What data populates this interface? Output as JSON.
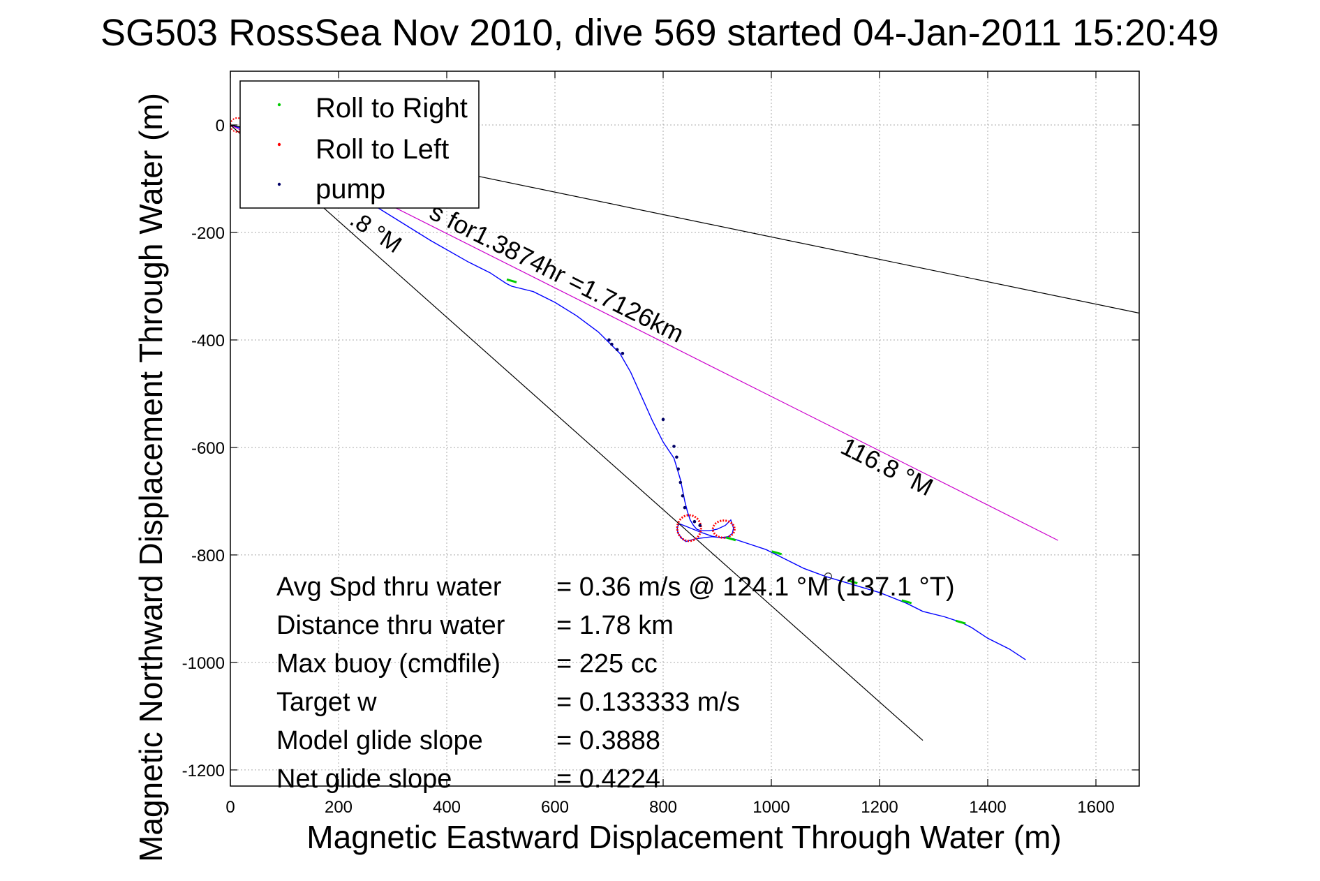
{
  "chart_data": {
    "type": "line",
    "title": "SG503 RossSea Nov 2010, dive 569 started 04-Jan-2011 15:20:49",
    "xlabel": "Magnetic Eastward Displacement Through Water (m)",
    "ylabel": "Magnetic Northward Displacement Through Water (m)",
    "xlim": [
      0,
      1680
    ],
    "ylim": [
      -1230,
      100
    ],
    "x_ticks": [
      0,
      200,
      400,
      600,
      800,
      1000,
      1200,
      1400,
      1600
    ],
    "y_ticks": [
      0,
      -200,
      -400,
      -600,
      -800,
      -1000,
      -1200
    ],
    "x_tick_labels": [
      "0",
      "200",
      "400",
      "600",
      "800",
      "1000",
      "1200",
      "1400",
      "1600"
    ],
    "y_tick_labels": [
      "0",
      "-200",
      "-400",
      "-600",
      "-800",
      "-1000",
      "-1200"
    ],
    "grid": true,
    "legend": {
      "position": "top-left",
      "entries": [
        {
          "label": "Roll to Right",
          "color": "#00cc00"
        },
        {
          "label": "Roll to Left",
          "color": "#ff0000"
        },
        {
          "label": "pump",
          "color": "#000066"
        }
      ]
    },
    "colors": {
      "track": "#0000ff",
      "avg_line": "#cc00cc",
      "ref_line": "#000000",
      "right": "#00cc00",
      "left": "#ff0000",
      "pump": "#000066",
      "marker": "#333333",
      "grid": "#aaaaaa"
    },
    "series": [
      {
        "name": "track",
        "x": [
          0,
          30,
          80,
          140,
          210,
          290,
          370,
          440,
          480,
          510,
          520,
          560,
          600,
          640,
          680,
          700,
          720,
          740,
          760,
          780,
          800,
          820,
          832,
          840,
          845,
          850,
          856,
          862,
          870,
          885,
          900,
          915,
          925,
          930,
          928,
          920,
          905,
          890,
          870,
          850,
          838,
          830,
          826,
          827,
          833,
          842,
          860,
          890,
          930,
          960,
          990,
          1010,
          1030,
          1060,
          1100,
          1150,
          1200,
          1250,
          1280,
          1320,
          1350,
          1370,
          1400,
          1440,
          1470
        ],
        "y": [
          0,
          -10,
          -35,
          -70,
          -115,
          -165,
          -215,
          -255,
          -275,
          -295,
          -300,
          -310,
          -330,
          -355,
          -385,
          -405,
          -425,
          -460,
          -505,
          -550,
          -590,
          -620,
          -660,
          -700,
          -720,
          -735,
          -745,
          -752,
          -755,
          -755,
          -752,
          -745,
          -735,
          -750,
          -760,
          -766,
          -768,
          -765,
          -758,
          -750,
          -745,
          -742,
          -748,
          -758,
          -768,
          -775,
          -770,
          -766,
          -770,
          -780,
          -790,
          -800,
          -810,
          -825,
          -840,
          -855,
          -870,
          -890,
          -905,
          -915,
          -925,
          -935,
          -955,
          -975,
          -995
        ]
      },
      {
        "name": "average-track",
        "x": [
          0,
          1530
        ],
        "y": [
          0,
          -773
        ]
      },
      {
        "name": "reference-line-1",
        "x": [
          0,
          1680
        ],
        "y": [
          0,
          -350
        ]
      },
      {
        "name": "reference-line-2",
        "x": [
          0,
          1280
        ],
        "y": [
          0,
          -1145
        ]
      }
    ],
    "roll_right_points": {
      "x": [
        520,
        925,
        1010,
        1150,
        1250,
        1350
      ],
      "y": [
        -290,
        -770,
        -796,
        -850,
        -887,
        -925
      ]
    },
    "roll_left_loops": [
      {
        "cx": 848,
        "cy": -750,
        "rx": 22,
        "ry": 24
      },
      {
        "cx": 912,
        "cy": -752,
        "rx": 20,
        "ry": 16
      }
    ],
    "pump_points": {
      "x": [
        700,
        705,
        715,
        725,
        800,
        820,
        825,
        828,
        832,
        836,
        840,
        858,
        868
      ],
      "y": [
        -400,
        -408,
        -418,
        -425,
        -548,
        -598,
        -618,
        -640,
        -665,
        -690,
        -712,
        -738,
        -745
      ]
    },
    "marker_circle": {
      "x": 1105,
      "y": -840
    },
    "annotations": {
      "avg_label_1": "s for1.3874hr =1.7126km",
      "avg_label_2": "116.8 °M",
      "ref_label": ".8 °M"
    },
    "stats": [
      {
        "label": "Avg Spd thru water",
        "value": "=  0.36 m/s @ 124.1  °M (137.1 °T)"
      },
      {
        "label": "Distance thru water",
        "value": "=  1.78 km"
      },
      {
        "label": "Max buoy (cmdfile)",
        "value": "= 225 cc"
      },
      {
        "label": "Target w",
        "value": "= 0.133333 m/s"
      },
      {
        "label": "Model glide slope",
        "value": "= 0.3888"
      },
      {
        "label": "Net glide slope",
        "value": "= 0.4224"
      }
    ]
  }
}
